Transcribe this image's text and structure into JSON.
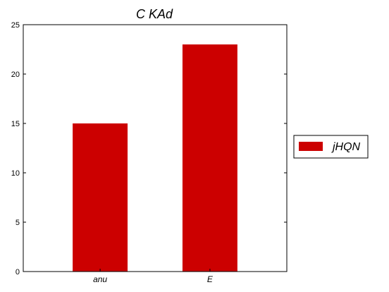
{
  "chart_data": {
    "type": "bar",
    "title": "C KAd",
    "xlabel": "",
    "ylabel": "",
    "categories": [
      "anu",
      "E"
    ],
    "series": [
      {
        "name": "jHQN",
        "values": [
          15,
          23
        ]
      }
    ],
    "ylim": [
      0,
      25
    ],
    "yticks": [
      0,
      5,
      10,
      15,
      20,
      25
    ],
    "grid": false,
    "legend_position": "outside-right",
    "colors": {
      "bar": "#cc0000",
      "axes": "#000000",
      "background": "#ffffff"
    }
  }
}
